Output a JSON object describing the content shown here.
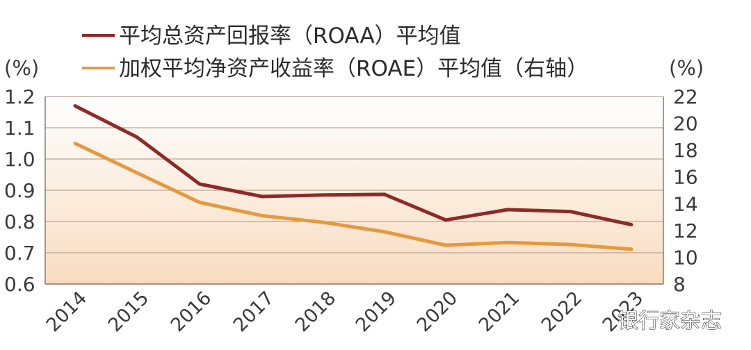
{
  "chart_data": {
    "type": "line",
    "categories": [
      "2014",
      "2015",
      "2016",
      "2017",
      "2018",
      "2019",
      "2020",
      "2021",
      "2022",
      "2023"
    ],
    "series": [
      {
        "name": "平均总资产回报率（ROAA）平均值",
        "axis": "left",
        "color": "#8e2a25",
        "values": [
          1.17,
          1.07,
          0.92,
          0.88,
          0.885,
          0.887,
          0.805,
          0.838,
          0.832,
          0.79
        ]
      },
      {
        "name": "加权平均净资产收益率（ROAE）平均值（右轴）",
        "axis": "right",
        "color": "#e5993e",
        "values": [
          18.5,
          16.3,
          14.1,
          13.1,
          12.6,
          11.9,
          10.9,
          11.1,
          10.95,
          10.6
        ]
      }
    ],
    "left_axis": {
      "unit_label": "(%)",
      "ylim": [
        0.6,
        1.2
      ],
      "ticks": [
        0.6,
        0.7,
        0.8,
        0.9,
        1.0,
        1.1,
        1.2
      ],
      "tick_labels": [
        "0.6",
        "0.7",
        "0.8",
        "0.9",
        "1.0",
        "1.1",
        "1.2"
      ]
    },
    "right_axis": {
      "unit_label": "(%)",
      "ylim": [
        8,
        22
      ],
      "ticks": [
        8,
        10,
        12,
        14,
        16,
        18,
        20,
        22
      ],
      "tick_labels": [
        "8",
        "10",
        "12",
        "14",
        "16",
        "18",
        "20",
        "22"
      ]
    },
    "grid": true,
    "legend_position": "top-left",
    "background_gradient": [
      "#ffffff",
      "#f8dcc0"
    ]
  },
  "watermark": "银行家杂志"
}
